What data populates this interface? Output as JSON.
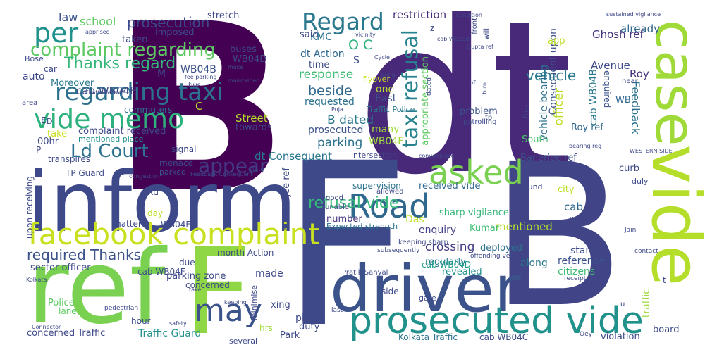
{
  "words": [
    {
      "text": "B",
      "color": "#440154"
    },
    {
      "text": "dt",
      "color": "#482878"
    },
    {
      "text": "inform",
      "color": "#3e4989"
    },
    {
      "text": "F",
      "color": "#3e4989"
    },
    {
      "text": "B",
      "color": "#414487"
    },
    {
      "text": "ref",
      "color": "#7ad151"
    },
    {
      "text": "F",
      "color": "#8fd744"
    },
    {
      "text": "driver",
      "color": "#3b528b"
    },
    {
      "text": "case",
      "color": "#a0da39"
    },
    {
      "text": "vide",
      "color": "#b5de2b"
    },
    {
      "text": "prosecuted vide",
      "color": "#21918c"
    },
    {
      "text": "facebook complaint",
      "color": "#c8e020"
    },
    {
      "text": "Road",
      "color": "#31688e"
    },
    {
      "text": "asked",
      "color": "#7ad151"
    },
    {
      "text": "may",
      "color": "#3b528b"
    },
    {
      "text": "vide memo",
      "color": "#2db27d"
    },
    {
      "text": "regarding taxi",
      "color": "#2c728e"
    },
    {
      "text": "per",
      "color": "#21918c"
    },
    {
      "text": "complaint regarding",
      "color": "#5ec962"
    },
    {
      "text": "Regard",
      "color": "#2a788e"
    },
    {
      "text": "taxi refusal",
      "color": "#26828e"
    },
    {
      "text": "appear",
      "color": "#443983"
    },
    {
      "text": "Ld Court",
      "color": "#2c728e"
    },
    {
      "text": "Thanks regard",
      "color": "#35b779"
    },
    {
      "text": "refusal vide",
      "color": "#35b779"
    },
    {
      "text": "required Thanks",
      "color": "#3b528b"
    },
    {
      "text": "vehicle",
      "color": "#2a788e"
    },
    {
      "text": "beside",
      "color": "#31688e"
    },
    {
      "text": "law",
      "color": "#3b528b"
    },
    {
      "text": "school",
      "color": "#5ec962"
    },
    {
      "text": "prosecution",
      "color": "#3e4989"
    },
    {
      "text": "restriction",
      "color": "#472d7b"
    },
    {
      "text": "already",
      "color": "#31688e"
    },
    {
      "text": "Ghosh ref",
      "color": "#46337e"
    },
    {
      "text": "Roy",
      "color": "#46337e"
    },
    {
      "text": "Avenue",
      "color": "#3e4989"
    },
    {
      "text": "cab WB04E",
      "color": "#3e4989"
    },
    {
      "text": "WB04B",
      "color": "#3b528b"
    },
    {
      "text": "O C",
      "color": "#2db27d"
    },
    {
      "text": "KMC",
      "color": "#2c728e"
    },
    {
      "text": "response",
      "color": "#3fbc73"
    },
    {
      "text": "dt Action",
      "color": "#31688e"
    },
    {
      "text": "B dated",
      "color": "#2a788e"
    },
    {
      "text": "parking",
      "color": "#2c728e"
    },
    {
      "text": "Street",
      "color": "#b5de2b"
    },
    {
      "text": "towards",
      "color": "#3e4989"
    },
    {
      "text": "prosecuted",
      "color": "#3b528b"
    },
    {
      "text": "WB04F",
      "color": "#9fda3a"
    },
    {
      "text": "dt Consequent",
      "color": "#2a788e"
    },
    {
      "text": "enquiry",
      "color": "#424086"
    },
    {
      "text": "crossing",
      "color": "#433e85"
    },
    {
      "text": "Das",
      "color": "#bddf26"
    },
    {
      "text": "cab",
      "color": "#31688e"
    },
    {
      "text": "mentioned",
      "color": "#b5de2b"
    },
    {
      "text": "sharp vigilance",
      "color": "#35b779"
    },
    {
      "text": "received vide",
      "color": "#31688e"
    },
    {
      "text": "supervision",
      "color": "#2c728e"
    },
    {
      "text": "number",
      "color": "#46337e"
    },
    {
      "text": "Kumar",
      "color": "#3fbc73"
    },
    {
      "text": "deployed",
      "color": "#2c728e"
    },
    {
      "text": "regularly",
      "color": "#2a788e"
    },
    {
      "text": "along",
      "color": "#2a788e"
    },
    {
      "text": "revealed",
      "color": "#21918c"
    },
    {
      "text": "cab WB04D",
      "color": "#1f9e89"
    },
    {
      "text": "stand",
      "color": "#3e4989"
    },
    {
      "text": "reference",
      "color": "#3b528b"
    },
    {
      "text": "citizens",
      "color": "#3fbc73"
    },
    {
      "text": "city",
      "color": "#bddf26"
    },
    {
      "text": "curb",
      "color": "#3e4989"
    },
    {
      "text": "board",
      "color": "#3e4989"
    },
    {
      "text": "violation",
      "color": "#3e4989"
    },
    {
      "text": "Banerjee ref",
      "color": "#3b528b"
    },
    {
      "text": "Roy ref",
      "color": "#31688e"
    },
    {
      "text": "South",
      "color": "#4ac16d"
    },
    {
      "text": "WB",
      "color": "#31688e"
    },
    {
      "text": "Feedback",
      "color": "#2c728e"
    },
    {
      "text": "officer",
      "color": "#bddf26"
    },
    {
      "text": "vehicle bearing",
      "color": "#2c728e"
    },
    {
      "text": "Consequent upon",
      "color": "#3b528b"
    },
    {
      "text": "cab WB04B",
      "color": "#2a788e"
    },
    {
      "text": "enquired",
      "color": "#3b528b"
    },
    {
      "text": "app",
      "color": "#bddf26"
    },
    {
      "text": "problem",
      "color": "#3b528b"
    },
    {
      "text": "East",
      "color": "#3b528b"
    },
    {
      "text": "requested",
      "color": "#2c728e"
    },
    {
      "text": "S",
      "color": "#3e4989"
    },
    {
      "text": "one",
      "color": "#b5de2b"
    },
    {
      "text": "many",
      "color": "#a0da39"
    },
    {
      "text": "time",
      "color": "#3e4989"
    },
    {
      "text": "said",
      "color": "#3e4989"
    },
    {
      "text": "buses",
      "color": "#3e4989"
    },
    {
      "text": "stretch",
      "color": "#3e4989"
    },
    {
      "text": "imposed",
      "color": "#3e4989"
    },
    {
      "text": "taken",
      "color": "#3e4989"
    },
    {
      "text": "Moreover",
      "color": "#2a788e"
    },
    {
      "text": "auto",
      "color": "#3e4989"
    },
    {
      "text": "car",
      "color": "#3e4989"
    },
    {
      "text": "Bose",
      "color": "#3e4989"
    },
    {
      "text": "commuters",
      "color": "#2c728e"
    },
    {
      "text": "complaint received",
      "color": "#3e4989"
    },
    {
      "text": "mentioned place",
      "color": "#21918c"
    },
    {
      "text": "take",
      "color": "#c8e020"
    },
    {
      "text": "00hr",
      "color": "#3e4989"
    },
    {
      "text": "transpires",
      "color": "#3e4989"
    },
    {
      "text": "TP Guard",
      "color": "#3e4989"
    },
    {
      "text": "signal",
      "color": "#3e4989"
    },
    {
      "text": "menace",
      "color": "#3e4989"
    },
    {
      "text": "parked",
      "color": "#3b528b"
    },
    {
      "text": "Rd",
      "color": "#3e4989"
    },
    {
      "text": "day",
      "color": "#bddf26"
    },
    {
      "text": "matter",
      "color": "#3e4989"
    },
    {
      "text": "WB04E",
      "color": "#3e4989"
    },
    {
      "text": "sector officer",
      "color": "#3e4989"
    },
    {
      "text": "cab WB04F",
      "color": "#3e4989"
    },
    {
      "text": "due",
      "color": "#3e4989"
    },
    {
      "text": "month Action",
      "color": "#3e4989"
    },
    {
      "text": "parking zone",
      "color": "#3e4989"
    },
    {
      "text": "concerned",
      "color": "#3e4989"
    },
    {
      "text": "Police",
      "color": "#5ec962"
    },
    {
      "text": "lane",
      "color": "#5ec962"
    },
    {
      "text": "hour",
      "color": "#3e4989"
    },
    {
      "text": "concerned Traffic",
      "color": "#3e4989"
    },
    {
      "text": "Traffic Guard",
      "color": "#21918c"
    },
    {
      "text": "made",
      "color": "#3e4989"
    },
    {
      "text": "hrs",
      "color": "#a0da39"
    },
    {
      "text": "xing",
      "color": "#3e4989"
    },
    {
      "text": "place",
      "color": "#3e4989"
    },
    {
      "text": "duty",
      "color": "#3e4989"
    },
    {
      "text": "Park",
      "color": "#3e4989"
    },
    {
      "text": "side",
      "color": "#3e4989"
    },
    {
      "text": "Kolkata Traffic",
      "color": "#2c728e"
    },
    {
      "text": "cab WB04C",
      "color": "#3e4989"
    },
    {
      "text": "Mukherjee ref",
      "color": "#3e4989"
    },
    {
      "text": "upon receiving",
      "color": "#3e4989"
    },
    {
      "text": "Expected strength",
      "color": "#2c728e"
    },
    {
      "text": "Traffic Police",
      "color": "#2a788e"
    },
    {
      "text": "appropriate section",
      "color": "#5ec962"
    },
    {
      "text": "free",
      "color": "#3e4989"
    },
    {
      "text": "traffic",
      "color": "#a0da39"
    },
    {
      "text": "intersection",
      "color": "#3e4989"
    },
    {
      "text": "flyover",
      "color": "#c8e020"
    },
    {
      "text": "patrolling",
      "color": "#3e4989"
    },
    {
      "text": "Pratik Sanyal",
      "color": "#3e4989"
    },
    {
      "text": "subsequently",
      "color": "#3e4989"
    },
    {
      "text": "offending vehicle",
      "color": "#3e4989"
    },
    {
      "text": "keeping sharp",
      "color": "#3e4989"
    },
    {
      "text": "good",
      "color": "#3e4989"
    },
    {
      "text": "unable",
      "color": "#3e4989"
    },
    {
      "text": "allowed",
      "color": "#3e4989"
    },
    {
      "text": "found",
      "color": "#3e4989"
    },
    {
      "text": "well",
      "color": "#3e4989"
    },
    {
      "text": "Jain",
      "color": "#3e4989"
    },
    {
      "text": "contact",
      "color": "#3e4989"
    },
    {
      "text": "receipt",
      "color": "#3e4989"
    },
    {
      "text": "duly",
      "color": "#3e4989"
    },
    {
      "text": "t",
      "color": "#3e4989"
    },
    {
      "text": "u",
      "color": "#3e4989"
    },
    {
      "text": "Oey",
      "color": "#3e4989"
    },
    {
      "text": "gate",
      "color": "#3e4989"
    },
    {
      "text": "last",
      "color": "#3e4989"
    },
    {
      "text": "several",
      "color": "#3e4989"
    },
    {
      "text": "minimise",
      "color": "#3e4989"
    },
    {
      "text": "safety",
      "color": "#3e4989"
    },
    {
      "text": "pedestrian",
      "color": "#3e4989"
    },
    {
      "text": "Connector",
      "color": "#3e4989"
    },
    {
      "text": "Kolkata",
      "color": "#3e4989"
    },
    {
      "text": "bearing reg",
      "color": "#3e4989"
    },
    {
      "text": "WESTERN SIDE",
      "color": "#3e4989"
    },
    {
      "text": "convenience",
      "color": "#3e4989"
    },
    {
      "text": "Feedback Consequent",
      "color": "#3e4989"
    },
    {
      "text": "congestion",
      "color": "#3e4989"
    },
    {
      "text": "state",
      "color": "#3e4989"
    },
    {
      "text": "Puja",
      "color": "#3e4989"
    },
    {
      "text": "cab WB19B",
      "color": "#3e4989"
    },
    {
      "text": "Gupta ref",
      "color": "#3e4989"
    },
    {
      "text": "sustained vigilance",
      "color": "#3e4989"
    },
    {
      "text": "condition",
      "color": "#3e4989"
    },
    {
      "text": "vicinity",
      "color": "#3e4989"
    },
    {
      "text": "apprised",
      "color": "#3e4989"
    },
    {
      "text": "make",
      "color": "#3e4989"
    },
    {
      "text": "Cycle",
      "color": "#3e4989"
    },
    {
      "text": "bring",
      "color": "#3e4989"
    },
    {
      "text": "St",
      "color": "#3e4989"
    },
    {
      "text": "turn",
      "color": "#3e4989"
    },
    {
      "text": "near",
      "color": "#3e4989"
    },
    {
      "text": "front",
      "color": "#3e4989"
    },
    {
      "text": "will",
      "color": "#3e4989"
    },
    {
      "text": "area",
      "color": "#3e4989"
    },
    {
      "text": "Chatterjee ref",
      "color": "#3e4989"
    },
    {
      "text": "fee parking",
      "color": "#3e4989"
    },
    {
      "text": "maintained",
      "color": "#3e4989"
    },
    {
      "text": "bus",
      "color": "#3e4989"
    },
    {
      "text": "WB04D",
      "color": "#3e4989"
    },
    {
      "text": "M",
      "color": "#3e4989"
    },
    {
      "text": "C",
      "color": "#bddf26"
    },
    {
      "text": "E",
      "color": "#3e4989"
    },
    {
      "text": "P",
      "color": "#3e4989"
    },
    {
      "text": "D",
      "color": "#3e4989"
    },
    {
      "text": "tp",
      "color": "#3e4989"
    },
    {
      "text": "dated",
      "color": "#3e4989"
    },
    {
      "text": "z",
      "color": "#3e4989"
    },
    {
      "text": "keeping",
      "color": "#3e4989"
    },
    {
      "text": "take",
      "color": "#3e4989"
    }
  ]
}
